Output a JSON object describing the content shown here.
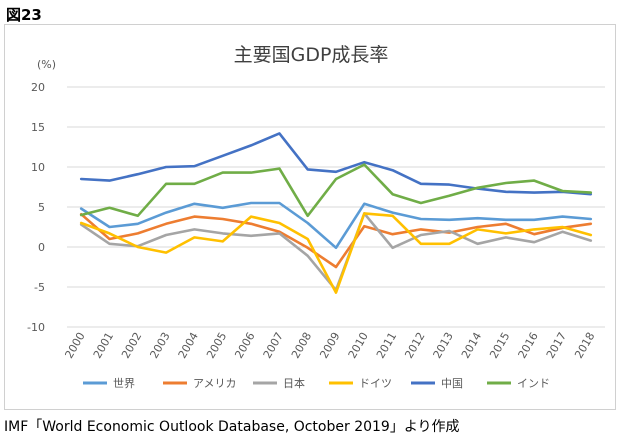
{
  "figure_label": "図23",
  "source_note": "IMF「World Economic Outlook Database, October 2019」より作成",
  "chart_data": {
    "type": "line",
    "title": "主要国GDP成長率",
    "unit_label": "(%)",
    "ylim": [
      -10,
      20
    ],
    "yticks": [
      -10,
      -5,
      0,
      5,
      10,
      15,
      20
    ],
    "grid": true,
    "legend_position": "bottom",
    "categories": [
      "2000",
      "2001",
      "2002",
      "2003",
      "2004",
      "2005",
      "2006",
      "2007",
      "2008",
      "2009",
      "2010",
      "2011",
      "2012",
      "2013",
      "2014",
      "2015",
      "2016",
      "2017",
      "2018"
    ],
    "series": [
      {
        "name": "世界",
        "color": "#5B9BD5",
        "values": [
          4.8,
          2.5,
          2.9,
          4.3,
          5.4,
          4.9,
          5.5,
          5.5,
          3.0,
          -0.1,
          5.4,
          4.3,
          3.5,
          3.4,
          3.6,
          3.4,
          3.4,
          3.8,
          3.5
        ]
      },
      {
        "name": "アメリカ",
        "color": "#ED7D31",
        "values": [
          4.1,
          1.0,
          1.7,
          2.9,
          3.8,
          3.5,
          2.9,
          1.9,
          -0.1,
          -2.5,
          2.6,
          1.6,
          2.2,
          1.8,
          2.5,
          2.9,
          1.6,
          2.4,
          2.9
        ]
      },
      {
        "name": "日本",
        "color": "#A5A5A5",
        "values": [
          2.8,
          0.4,
          0.1,
          1.5,
          2.2,
          1.7,
          1.4,
          1.7,
          -1.1,
          -5.4,
          4.2,
          -0.1,
          1.5,
          2.0,
          0.4,
          1.2,
          0.6,
          1.9,
          0.8
        ]
      },
      {
        "name": "ドイツ",
        "color": "#FFC000",
        "values": [
          3.0,
          1.7,
          0.0,
          -0.7,
          1.2,
          0.7,
          3.8,
          3.0,
          1.0,
          -5.7,
          4.2,
          3.9,
          0.4,
          0.4,
          2.2,
          1.7,
          2.2,
          2.5,
          1.5
        ]
      },
      {
        "name": "中国",
        "color": "#4472C4",
        "values": [
          8.5,
          8.3,
          9.1,
          10.0,
          10.1,
          11.4,
          12.7,
          14.2,
          9.7,
          9.4,
          10.6,
          9.6,
          7.9,
          7.8,
          7.3,
          6.9,
          6.8,
          6.9,
          6.6
        ]
      },
      {
        "name": "インド",
        "color": "#70AD47",
        "values": [
          4.0,
          4.9,
          3.9,
          7.9,
          7.9,
          9.3,
          9.3,
          9.8,
          3.9,
          8.5,
          10.3,
          6.6,
          5.5,
          6.4,
          7.4,
          8.0,
          8.3,
          7.0,
          6.8
        ]
      }
    ]
  }
}
